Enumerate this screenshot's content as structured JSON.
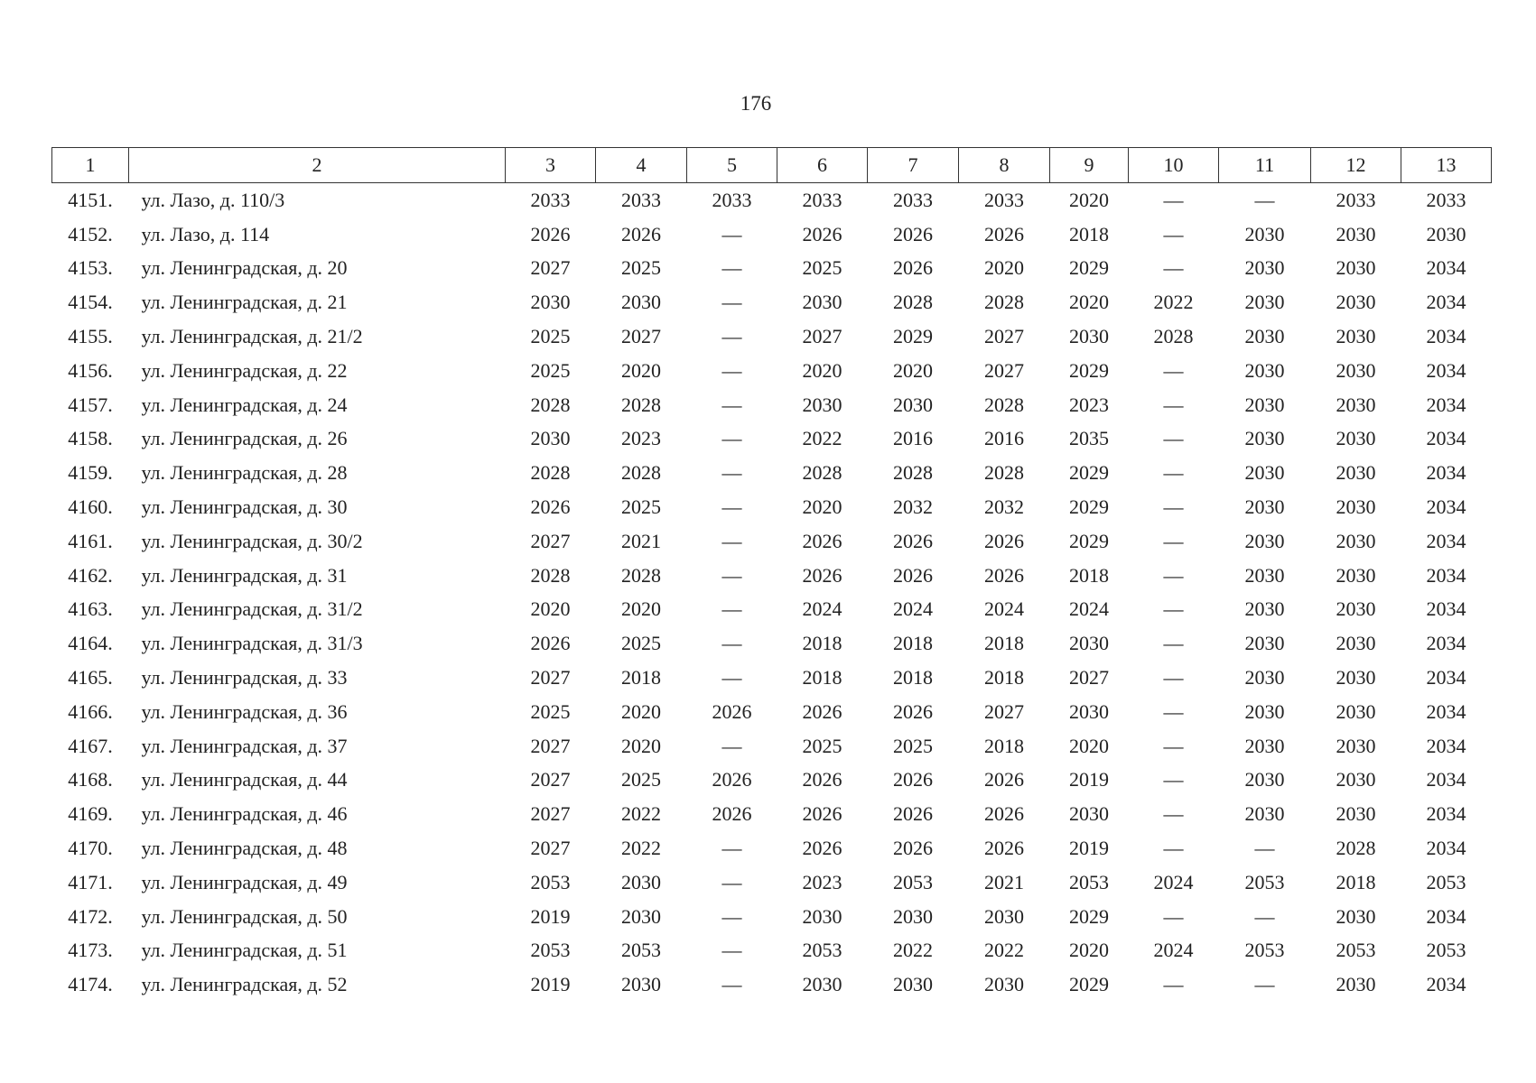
{
  "page_number": "176",
  "table": {
    "header": [
      "1",
      "2",
      "3",
      "4",
      "5",
      "6",
      "7",
      "8",
      "9",
      "10",
      "11",
      "12",
      "13"
    ],
    "rows": [
      [
        "4151.",
        "ул. Лазо, д. 110/3",
        "2033",
        "2033",
        "2033",
        "2033",
        "2033",
        "2033",
        "2020",
        "—",
        "—",
        "2033",
        "2033"
      ],
      [
        "4152.",
        "ул. Лазо, д. 114",
        "2026",
        "2026",
        "—",
        "2026",
        "2026",
        "2026",
        "2018",
        "—",
        "2030",
        "2030",
        "2030"
      ],
      [
        "4153.",
        "ул. Ленинградская, д. 20",
        "2027",
        "2025",
        "—",
        "2025",
        "2026",
        "2020",
        "2029",
        "—",
        "2030",
        "2030",
        "2034"
      ],
      [
        "4154.",
        "ул. Ленинградская, д. 21",
        "2030",
        "2030",
        "—",
        "2030",
        "2028",
        "2028",
        "2020",
        "2022",
        "2030",
        "2030",
        "2034"
      ],
      [
        "4155.",
        "ул. Ленинградская, д. 21/2",
        "2025",
        "2027",
        "—",
        "2027",
        "2029",
        "2027",
        "2030",
        "2028",
        "2030",
        "2030",
        "2034"
      ],
      [
        "4156.",
        "ул. Ленинградская, д. 22",
        "2025",
        "2020",
        "—",
        "2020",
        "2020",
        "2027",
        "2029",
        "—",
        "2030",
        "2030",
        "2034"
      ],
      [
        "4157.",
        "ул. Ленинградская, д. 24",
        "2028",
        "2028",
        "—",
        "2030",
        "2030",
        "2028",
        "2023",
        "—",
        "2030",
        "2030",
        "2034"
      ],
      [
        "4158.",
        "ул. Ленинградская, д. 26",
        "2030",
        "2023",
        "—",
        "2022",
        "2016",
        "2016",
        "2035",
        "—",
        "2030",
        "2030",
        "2034"
      ],
      [
        "4159.",
        "ул. Ленинградская, д. 28",
        "2028",
        "2028",
        "—",
        "2028",
        "2028",
        "2028",
        "2029",
        "—",
        "2030",
        "2030",
        "2034"
      ],
      [
        "4160.",
        "ул. Ленинградская, д. 30",
        "2026",
        "2025",
        "—",
        "2020",
        "2032",
        "2032",
        "2029",
        "—",
        "2030",
        "2030",
        "2034"
      ],
      [
        "4161.",
        "ул. Ленинградская, д. 30/2",
        "2027",
        "2021",
        "—",
        "2026",
        "2026",
        "2026",
        "2029",
        "—",
        "2030",
        "2030",
        "2034"
      ],
      [
        "4162.",
        "ул. Ленинградская, д. 31",
        "2028",
        "2028",
        "—",
        "2026",
        "2026",
        "2026",
        "2018",
        "—",
        "2030",
        "2030",
        "2034"
      ],
      [
        "4163.",
        "ул. Ленинградская, д. 31/2",
        "2020",
        "2020",
        "—",
        "2024",
        "2024",
        "2024",
        "2024",
        "—",
        "2030",
        "2030",
        "2034"
      ],
      [
        "4164.",
        "ул. Ленинградская, д. 31/3",
        "2026",
        "2025",
        "—",
        "2018",
        "2018",
        "2018",
        "2030",
        "—",
        "2030",
        "2030",
        "2034"
      ],
      [
        "4165.",
        "ул. Ленинградская, д. 33",
        "2027",
        "2018",
        "—",
        "2018",
        "2018",
        "2018",
        "2027",
        "—",
        "2030",
        "2030",
        "2034"
      ],
      [
        "4166.",
        "ул. Ленинградская, д. 36",
        "2025",
        "2020",
        "2026",
        "2026",
        "2026",
        "2027",
        "2030",
        "—",
        "2030",
        "2030",
        "2034"
      ],
      [
        "4167.",
        "ул. Ленинградская, д. 37",
        "2027",
        "2020",
        "—",
        "2025",
        "2025",
        "2018",
        "2020",
        "—",
        "2030",
        "2030",
        "2034"
      ],
      [
        "4168.",
        "ул. Ленинградская, д. 44",
        "2027",
        "2025",
        "2026",
        "2026",
        "2026",
        "2026",
        "2019",
        "—",
        "2030",
        "2030",
        "2034"
      ],
      [
        "4169.",
        "ул. Ленинградская, д. 46",
        "2027",
        "2022",
        "2026",
        "2026",
        "2026",
        "2026",
        "2030",
        "—",
        "2030",
        "2030",
        "2034"
      ],
      [
        "4170.",
        "ул. Ленинградская, д. 48",
        "2027",
        "2022",
        "—",
        "2026",
        "2026",
        "2026",
        "2019",
        "—",
        "—",
        "2028",
        "2034"
      ],
      [
        "4171.",
        "ул. Ленинградская, д. 49",
        "2053",
        "2030",
        "—",
        "2023",
        "2053",
        "2021",
        "2053",
        "2024",
        "2053",
        "2018",
        "2053"
      ],
      [
        "4172.",
        "ул. Ленинградская, д. 50",
        "2019",
        "2030",
        "—",
        "2030",
        "2030",
        "2030",
        "2029",
        "—",
        "—",
        "2030",
        "2034"
      ],
      [
        "4173.",
        "ул. Ленинградская, д. 51",
        "2053",
        "2053",
        "—",
        "2053",
        "2022",
        "2022",
        "2020",
        "2024",
        "2053",
        "2053",
        "2053"
      ],
      [
        "4174.",
        "ул. Ленинградская, д. 52",
        "2019",
        "2030",
        "—",
        "2030",
        "2030",
        "2030",
        "2029",
        "—",
        "—",
        "2030",
        "2034"
      ]
    ]
  }
}
